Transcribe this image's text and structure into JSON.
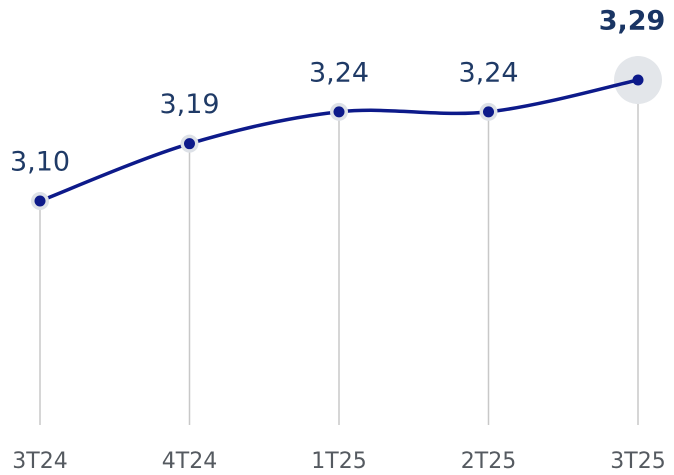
{
  "chart_data": {
    "type": "line",
    "categories": [
      "3T24",
      "4T24",
      "1T25",
      "2T25",
      "3T25"
    ],
    "values": [
      3.1,
      3.19,
      3.24,
      3.24,
      3.29
    ],
    "value_labels": [
      "3,10",
      "3,19",
      "3,24",
      "3,24",
      "3,29"
    ],
    "color": "#0d1a8a"
  }
}
